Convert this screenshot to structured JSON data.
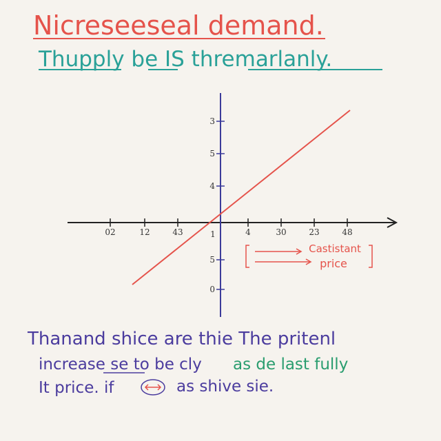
{
  "title": "Nicreseeseal demand.",
  "subtitle": "Thupply be IS thremarlanly.",
  "graph": {
    "x_labels": [
      "02",
      "12",
      "43",
      "1",
      "4",
      "30",
      "23",
      "48"
    ],
    "y_labels": [
      "3",
      "5",
      "4",
      "5",
      "0"
    ],
    "annotation": [
      "Castistant",
      "price"
    ]
  },
  "text": {
    "line1": "Thanand shice are thie The pritenl",
    "line2a": "increase se to be cly",
    "line2b": "as de last fully",
    "line3a": "It price. if",
    "line3b": "as shive sie."
  }
}
